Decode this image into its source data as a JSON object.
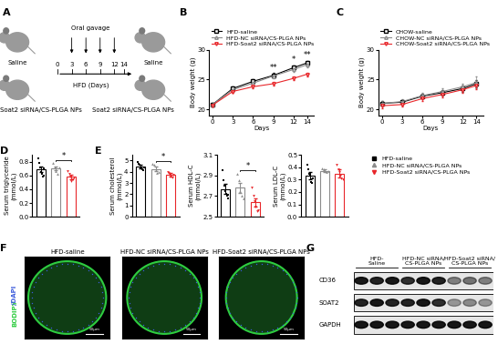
{
  "panel_labels": [
    "A",
    "B",
    "C",
    "D",
    "E",
    "F",
    "G"
  ],
  "schematic": {
    "groups": [
      "Saline",
      "Soat2 siRNA/CS-PLGA NPs"
    ],
    "procedure": "Oral gavage",
    "axis_label": "HFD (Days)",
    "days": [
      0,
      3,
      6,
      9,
      12,
      14
    ],
    "gavage_days": [
      3,
      6,
      9,
      12
    ]
  },
  "chart_data": [
    {
      "type": "line",
      "x": [
        0,
        3,
        6,
        9,
        12,
        14
      ],
      "xlim": [
        -0.5,
        15
      ],
      "xticks": [
        0,
        3,
        6,
        9,
        12,
        14
      ],
      "ylim": [
        19,
        30
      ],
      "yticks": [
        20,
        25,
        30
      ],
      "x_label": "Days",
      "y_label": "Body weight (g)",
      "legend": "top",
      "series": [
        {
          "name": "HFD-saline",
          "color": "#000000",
          "marker": "square",
          "values": [
            20.8,
            23.5,
            24.7,
            25.7,
            27.0,
            27.8
          ],
          "errors": [
            0.3,
            0.4,
            0.4,
            0.4,
            0.4,
            0.4
          ]
        },
        {
          "name": "HFD-NC siRNA/CS-PLGA NPs",
          "color": "#8c8c8c",
          "marker": "triangle_up",
          "values": [
            20.8,
            23.3,
            24.4,
            25.6,
            26.7,
            27.5
          ],
          "errors": [
            0.3,
            0.3,
            0.4,
            0.4,
            0.4,
            0.4
          ]
        },
        {
          "name": "HFD-Soat2 siRNA/CS-PLGA NPs",
          "color": "#e8262a",
          "marker": "triangle_down",
          "values": [
            20.7,
            23.0,
            23.8,
            24.3,
            25.2,
            25.9
          ],
          "errors": [
            0.3,
            0.3,
            0.3,
            0.3,
            0.3,
            0.3
          ]
        }
      ],
      "annotations": [
        {
          "x": 9,
          "y": 26.3,
          "text": "**"
        },
        {
          "x": 12,
          "y": 27.6,
          "text": "*"
        },
        {
          "x": 14,
          "y": 28.4,
          "text": "**"
        }
      ]
    },
    {
      "type": "line",
      "x": [
        0,
        3,
        6,
        9,
        12,
        14
      ],
      "xlim": [
        -0.5,
        15
      ],
      "xticks": [
        0,
        3,
        6,
        9,
        12,
        14
      ],
      "ylim": [
        19,
        30
      ],
      "yticks": [
        20,
        25,
        30
      ],
      "x_label": "Days",
      "y_label": "Body weight (g)",
      "legend": "top",
      "series": [
        {
          "name": "CHOW-saline",
          "color": "#000000",
          "marker": "square",
          "values": [
            21.0,
            21.2,
            22.2,
            22.8,
            23.5,
            24.3
          ],
          "errors": [
            0.4,
            0.4,
            0.4,
            0.5,
            0.5,
            0.6
          ]
        },
        {
          "name": "CHOW-NC siRNA/CS-PLGA NPs",
          "color": "#8c8c8c",
          "marker": "triangle_up",
          "values": [
            21.0,
            21.3,
            22.3,
            23.0,
            23.8,
            24.5
          ],
          "errors": [
            0.4,
            0.4,
            0.4,
            0.5,
            0.5,
            1.0
          ]
        },
        {
          "name": "CHOW-Soat2 siRNA/CS-PLGA NPs",
          "color": "#e8262a",
          "marker": "triangle_down",
          "values": [
            20.6,
            20.8,
            21.8,
            22.5,
            23.3,
            24.0
          ],
          "errors": [
            0.4,
            0.4,
            0.4,
            0.5,
            0.5,
            0.6
          ]
        }
      ],
      "annotations": []
    },
    {
      "type": "bar",
      "categories": [
        null,
        null,
        null
      ],
      "tick_labels": "y",
      "y_label": "Serum triglyceride\n(mmol/L)",
      "ylim": [
        0,
        0.9
      ],
      "yticks": [
        0.0,
        0.2,
        0.4,
        0.6,
        0.8
      ],
      "colors": [
        "#000000",
        "#8c8c8c",
        "#e8262a"
      ],
      "values": [
        0.69,
        0.7,
        0.58
      ],
      "errors": [
        0.04,
        0.03,
        0.03
      ],
      "points": [
        [
          0.85,
          0.78,
          0.72,
          0.65,
          0.62,
          0.58,
          0.6,
          0.7
        ],
        [
          0.78,
          0.72,
          0.66,
          0.62,
          0.72
        ],
        [
          0.66,
          0.62,
          0.58,
          0.52,
          0.55,
          0.57
        ]
      ],
      "significance": [
        {
          "from": 1,
          "to": 2,
          "text": "*"
        }
      ]
    },
    {
      "type": "bar",
      "categories": [
        null,
        null,
        null
      ],
      "tick_labels": "y",
      "y_label": "Serum cholesterol\n(mmol/L)",
      "ylim": [
        0,
        5.5
      ],
      "yticks": [
        0,
        1,
        2,
        3,
        4,
        5
      ],
      "colors": [
        "#000000",
        "#8c8c8c",
        "#e8262a"
      ],
      "values": [
        4.45,
        4.25,
        3.75
      ],
      "errors": [
        0.15,
        0.2,
        0.15
      ],
      "points": [
        [
          4.9,
          4.7,
          4.6,
          4.4,
          4.3,
          4.2,
          4.1,
          4.4
        ],
        [
          4.7,
          4.6,
          4.1,
          3.9,
          4.0
        ],
        [
          4.0,
          3.9,
          3.8,
          3.6,
          3.5,
          3.7
        ]
      ],
      "significance": [
        {
          "from": 1,
          "to": 2,
          "text": "*"
        }
      ]
    },
    {
      "type": "bar",
      "categories": [
        null,
        null,
        null
      ],
      "tick_labels": "y",
      "y_label": "Serum HDL-C\n(mmol/L)",
      "ylim": [
        2.5,
        3.1
      ],
      "yticks": [
        2.5,
        2.7,
        2.9,
        3.1
      ],
      "colors": [
        "#000000",
        "#8c8c8c",
        "#e8262a"
      ],
      "values": [
        2.77,
        2.78,
        2.64
      ],
      "errors": [
        0.05,
        0.05,
        0.04
      ],
      "points": [
        [
          2.95,
          2.85,
          2.8,
          2.75,
          2.72,
          2.7,
          2.68,
          2.71
        ],
        [
          2.92,
          2.85,
          2.75,
          2.7,
          2.68
        ],
        [
          2.78,
          2.7,
          2.65,
          2.6,
          2.55,
          2.56
        ]
      ],
      "significance": [
        {
          "from": 1,
          "to": 2,
          "text": "*"
        }
      ]
    },
    {
      "type": "bar",
      "categories": [
        null,
        null,
        null
      ],
      "tick_labels": "y",
      "y_label": "Serum LDL-C\n(mmol/L)",
      "ylim": [
        0,
        0.5
      ],
      "yticks": [
        0.0,
        0.1,
        0.2,
        0.3,
        0.4,
        0.5
      ],
      "colors": [
        "#000000",
        "#8c8c8c",
        "#e8262a"
      ],
      "values": [
        0.33,
        0.37,
        0.35
      ],
      "errors": [
        0.03,
        0.01,
        0.03
      ],
      "points": [
        [
          0.42,
          0.38,
          0.35,
          0.33,
          0.3,
          0.28,
          0.27,
          0.31
        ],
        [
          0.39,
          0.38,
          0.37,
          0.36,
          0.37
        ],
        [
          0.42,
          0.38,
          0.36,
          0.33,
          0.31,
          0.3
        ]
      ],
      "significance": []
    }
  ],
  "group_legend": {
    "names": [
      "HFD-saline",
      "HFD-NC siRNA/CS-PLGA NPs",
      "HFD-Soat2 siRNA/CS-PLGA NPs"
    ],
    "colors": [
      "#000000",
      "#8c8c8c",
      "#e8262a"
    ],
    "markers": [
      "square",
      "triangle_up",
      "triangle_down"
    ]
  },
  "staining": {
    "columns": [
      "HFD-saline",
      "HFD-NC siRNA/CS-PLGA NPs",
      "HFD-Soat2 siRNA/CS-PLGA NPs"
    ],
    "stains": [
      {
        "name": "BODIPY",
        "color": "#2ecc40"
      },
      {
        "name": "/DAPI",
        "color": "#3b5bdb"
      }
    ],
    "scale_bar": "50μm"
  },
  "western_blot": {
    "groups": [
      "HFD-\nSaline",
      "HFD-NC siRNA/\nCS-PLGA NPs",
      "HFD-Soat2 siRNA/\nCS-PLGA NPs"
    ],
    "proteins": [
      "CD36",
      "SOAT2",
      "GAPDH"
    ]
  }
}
